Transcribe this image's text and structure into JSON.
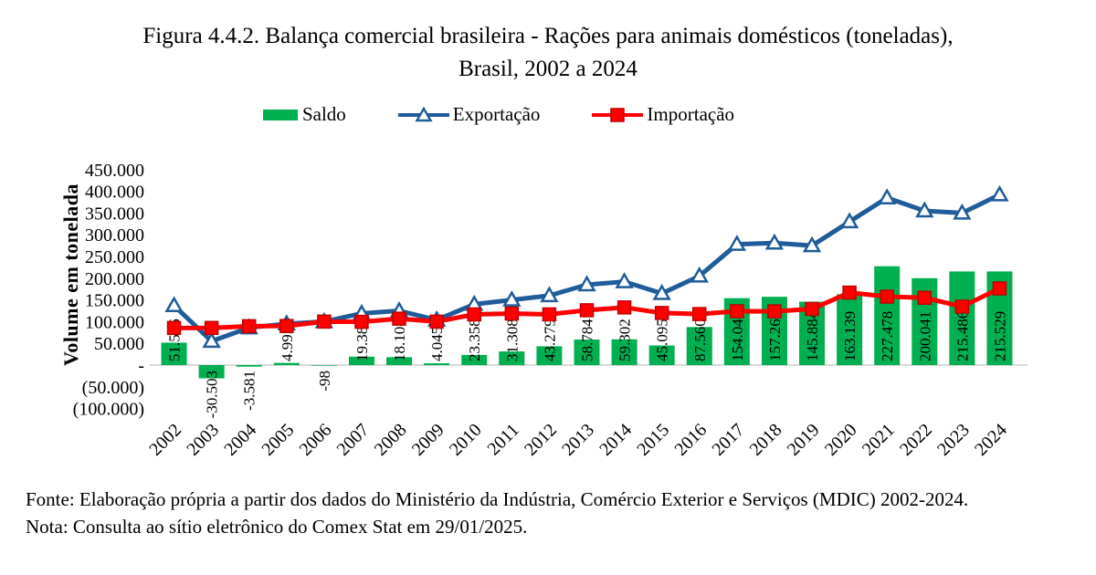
{
  "title": {
    "line1": "Figura 4.4.2. Balança comercial brasileira - Rações para animais domésticos (toneladas),",
    "line2": "Brasil, 2002 a 2024"
  },
  "legend": {
    "saldo_label": "Saldo",
    "exportacao_label": "Exportação",
    "importacao_label": "Importação"
  },
  "axis": {
    "y_title": "Volume em tonelada",
    "y_ticks": [
      {
        "label": "450.000",
        "value": 450000
      },
      {
        "label": "400.000",
        "value": 400000
      },
      {
        "label": "350.000",
        "value": 350000
      },
      {
        "label": "300.000",
        "value": 300000
      },
      {
        "label": "250.000",
        "value": 250000
      },
      {
        "label": "200.000",
        "value": 200000
      },
      {
        "label": "150.000",
        "value": 150000
      },
      {
        "label": "100.000",
        "value": 100000
      },
      {
        "label": "50.000",
        "value": 50000
      },
      {
        "label": "-",
        "value": 0
      },
      {
        "label": "(50.000)",
        "value": -50000
      },
      {
        "label": "(100.000)",
        "value": -100000
      }
    ]
  },
  "colors": {
    "saldo": "#00B050",
    "exportacao": "#1F5C99",
    "importacao": "#FF0000",
    "negative_label": "#FF0000",
    "axis_line": "#D8D8D8"
  },
  "footer": {
    "fonte": "Fonte: Elaboração própria a partir dos dados do Ministério da Indústria, Comércio Exterior e Serviços (MDIC) 2002-2024.",
    "nota": "Nota: Consulta ao sítio eletrônico do Comex Stat em 29/01/2025."
  },
  "chart_data": {
    "type": "bar",
    "subtype": "combo-bar-and-lines",
    "title": "Figura 4.4.2. Balança comercial brasileira - Rações para animais domésticos (toneladas), Brasil, 2002 a 2024",
    "xlabel": "",
    "ylabel": "Volume em tonelada",
    "ylim": [
      -100000,
      450000
    ],
    "y_tick_step": 50000,
    "grid": false,
    "legend_position": "top",
    "categories": [
      "2002",
      "2003",
      "2004",
      "2005",
      "2006",
      "2007",
      "2008",
      "2009",
      "2010",
      "2011",
      "2012",
      "2013",
      "2014",
      "2015",
      "2016",
      "2017",
      "2018",
      "2019",
      "2020",
      "2021",
      "2022",
      "2023",
      "2024"
    ],
    "series": [
      {
        "name": "Saldo",
        "type": "bar",
        "color": "#00B050",
        "values": [
          51576,
          -30503,
          -3581,
          4995,
          -98,
          19384,
          18108,
          4045,
          23358,
          31308,
          43279,
          58784,
          59302,
          45095,
          87560,
          154040,
          157268,
          145884,
          163139,
          227478,
          200041,
          215486,
          215529
        ],
        "labels": [
          "51.576",
          "-30.503",
          "-3.581",
          "4.995",
          "-98",
          "19.384",
          "18.108",
          "4.045",
          "23.358",
          "31.308",
          "43.279",
          "58.784",
          "59.302",
          "45.095",
          "87.560",
          "154.040",
          "157.268",
          "145.884",
          "163.139",
          "227.478",
          "200.041",
          "215.486",
          "215.529"
        ]
      },
      {
        "name": "Exportação",
        "type": "line",
        "marker": "triangle",
        "color": "#1F5C99",
        "values": [
          137000,
          55000,
          86000,
          95000,
          100000,
          119000,
          125000,
          104000,
          140000,
          150000,
          160000,
          185000,
          192000,
          165000,
          205000,
          278000,
          281000,
          275000,
          330000,
          385000,
          355000,
          350000,
          392000
        ]
      },
      {
        "name": "Importação",
        "type": "line",
        "marker": "square",
        "color": "#FF0000",
        "values": [
          85424,
          85503,
          89581,
          90005,
          100098,
          99616,
          106892,
          99955,
          116642,
          118692,
          116721,
          126216,
          132698,
          119905,
          117440,
          123960,
          123732,
          129116,
          166861,
          157522,
          154959,
          134514,
          176471
        ]
      }
    ]
  }
}
